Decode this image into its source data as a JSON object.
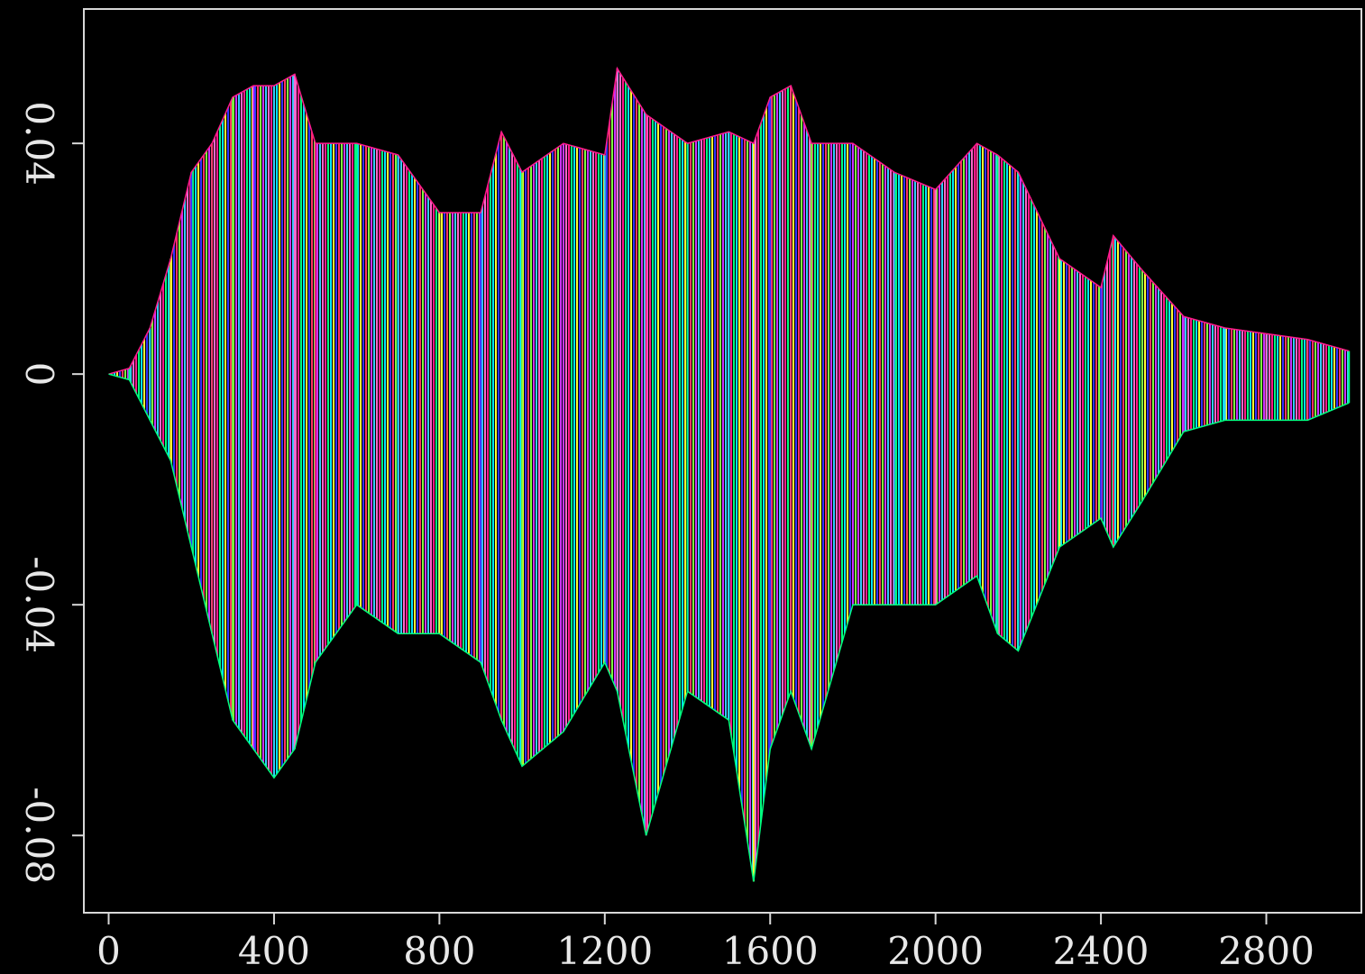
{
  "chart_data": {
    "type": "band",
    "x": [
      0,
      50,
      100,
      150,
      200,
      250,
      300,
      350,
      400,
      450,
      500,
      600,
      700,
      800,
      900,
      950,
      1000,
      1100,
      1200,
      1230,
      1300,
      1400,
      1500,
      1560,
      1600,
      1650,
      1700,
      1800,
      1900,
      2000,
      2100,
      2150,
      2200,
      2300,
      2400,
      2430,
      2500,
      2600,
      2700,
      2800,
      2900,
      3000
    ],
    "upper": [
      0,
      0.001,
      0.008,
      0.02,
      0.035,
      0.04,
      0.048,
      0.05,
      0.05,
      0.052,
      0.04,
      0.04,
      0.038,
      0.028,
      0.028,
      0.042,
      0.035,
      0.04,
      0.038,
      0.053,
      0.045,
      0.04,
      0.042,
      0.04,
      0.048,
      0.05,
      0.04,
      0.04,
      0.035,
      0.032,
      0.04,
      0.038,
      0.035,
      0.02,
      0.015,
      0.024,
      0.018,
      0.01,
      0.008,
      0.007,
      0.006,
      0.004
    ],
    "lower": [
      0,
      -0.001,
      -0.008,
      -0.015,
      -0.03,
      -0.045,
      -0.06,
      -0.065,
      -0.07,
      -0.065,
      -0.05,
      -0.04,
      -0.045,
      -0.045,
      -0.05,
      -0.06,
      -0.068,
      -0.062,
      -0.05,
      -0.055,
      -0.08,
      -0.055,
      -0.06,
      -0.088,
      -0.065,
      -0.055,
      -0.065,
      -0.04,
      -0.04,
      -0.04,
      -0.035,
      -0.045,
      -0.048,
      -0.03,
      -0.025,
      -0.03,
      -0.022,
      -0.01,
      -0.008,
      -0.008,
      -0.008,
      -0.005
    ],
    "colors": [
      "#ff1a8c",
      "#00ff80",
      "#00e5ff",
      "#ffff33",
      "#3333ff",
      "#ff3366",
      "#80ff40",
      "#cc33ff",
      "#33ccff",
      "#ff66cc"
    ],
    "xlim": [
      -60,
      3030
    ],
    "ylim": [
      -0.0934,
      0.0633
    ],
    "xticks": [
      0,
      400,
      800,
      1200,
      1600,
      2000,
      2400,
      2800
    ],
    "yticks": [
      -0.08,
      -0.04,
      0,
      0.04
    ]
  }
}
